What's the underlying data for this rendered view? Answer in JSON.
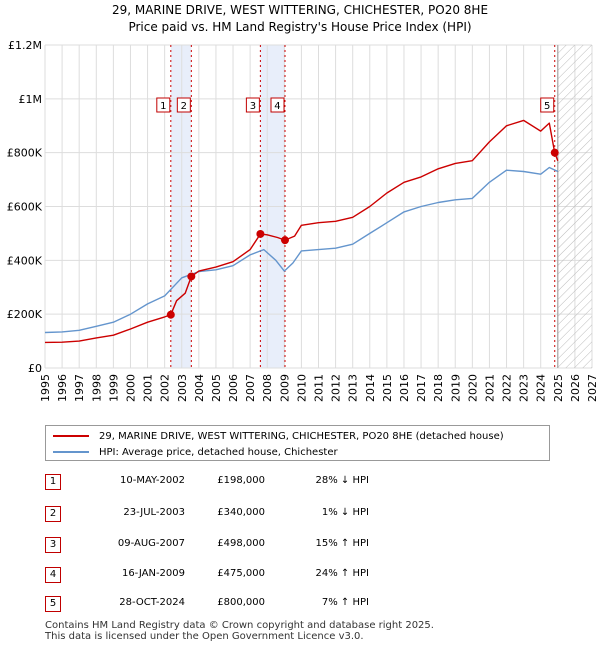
{
  "title_line1": "29, MARINE DRIVE, WEST WITTERING, CHICHESTER, PO20 8HE",
  "title_line2": "Price paid vs. HM Land Registry's House Price Index (HPI)",
  "legend": {
    "property_label": "29, MARINE DRIVE, WEST WITTERING, CHICHESTER, PO20 8HE (detached house)",
    "hpi_label": "HPI: Average price, detached house, Chichester"
  },
  "sales": [
    {
      "num": "1",
      "date": "10-MAY-2002",
      "price": "£198,000",
      "hpi_change": "28% ↓ HPI"
    },
    {
      "num": "2",
      "date": "23-JUL-2003",
      "price": "£340,000",
      "hpi_change": "1% ↓ HPI"
    },
    {
      "num": "3",
      "date": "09-AUG-2007",
      "price": "£498,000",
      "hpi_change": "15% ↑ HPI"
    },
    {
      "num": "4",
      "date": "16-JAN-2009",
      "price": "£475,000",
      "hpi_change": "24% ↑ HPI"
    },
    {
      "num": "5",
      "date": "28-OCT-2024",
      "price": "£800,000",
      "hpi_change": "7% ↑ HPI"
    }
  ],
  "footer_line1": "Contains HM Land Registry data © Crown copyright and database right 2025.",
  "footer_line2": "This data is licensed under the Open Government Licence v3.0.",
  "colors": {
    "property": "#cc0000",
    "hpi": "#6495cd",
    "grid": "#dddddd",
    "band": "#e8eefa"
  },
  "chart_data": {
    "type": "line",
    "title": "29, MARINE DRIVE, WEST WITTERING, CHICHESTER, PO20 8HE",
    "subtitle": "Price paid vs. HM Land Registry's House Price Index (HPI)",
    "xlim": [
      1995,
      2027
    ],
    "ylim": [
      0,
      1200000
    ],
    "x_ticks": [
      "1995",
      "1996",
      "1997",
      "1998",
      "1999",
      "2000",
      "2001",
      "2002",
      "2003",
      "2004",
      "2005",
      "2006",
      "2007",
      "2008",
      "2009",
      "2010",
      "2011",
      "2012",
      "2013",
      "2014",
      "2015",
      "2016",
      "2017",
      "2018",
      "2019",
      "2020",
      "2021",
      "2022",
      "2023",
      "2024",
      "2025",
      "2026",
      "2027"
    ],
    "y_ticks": [
      {
        "value": 0,
        "label": "£0"
      },
      {
        "value": 200000,
        "label": "£200K"
      },
      {
        "value": 400000,
        "label": "£400K"
      },
      {
        "value": 600000,
        "label": "£600K"
      },
      {
        "value": 800000,
        "label": "£800K"
      },
      {
        "value": 1000000,
        "label": "£1M"
      },
      {
        "value": 1200000,
        "label": "£1.2M"
      }
    ],
    "grid": true,
    "forecast_from": 2025.0,
    "sale_bands": [
      [
        2002.36,
        2003.56
      ],
      [
        2007.6,
        2009.04
      ]
    ],
    "sale_markers": [
      {
        "label": "1",
        "x": 2002.36,
        "y": 198000
      },
      {
        "label": "2",
        "x": 2003.56,
        "y": 340000
      },
      {
        "label": "3",
        "x": 2007.6,
        "y": 498000
      },
      {
        "label": "4",
        "x": 2009.04,
        "y": 475000
      },
      {
        "label": "5",
        "x": 2024.82,
        "y": 800000
      }
    ],
    "series": [
      {
        "name": "29, MARINE DRIVE, WEST WITTERING, CHICHESTER, PO20 8HE (detached house)",
        "color": "#cc0000",
        "points": [
          [
            1995,
            95000
          ],
          [
            1996,
            96000
          ],
          [
            1997,
            100000
          ],
          [
            1998,
            112000
          ],
          [
            1999,
            122000
          ],
          [
            2000,
            145000
          ],
          [
            2001,
            170000
          ],
          [
            2002,
            190000
          ],
          [
            2002.36,
            198000
          ],
          [
            2002.7,
            250000
          ],
          [
            2003.2,
            278000
          ],
          [
            2003.56,
            340000
          ],
          [
            2004,
            360000
          ],
          [
            2005,
            375000
          ],
          [
            2006,
            395000
          ],
          [
            2007,
            440000
          ],
          [
            2007.6,
            498000
          ],
          [
            2008,
            495000
          ],
          [
            2008.6,
            485000
          ],
          [
            2009.04,
            475000
          ],
          [
            2009.6,
            490000
          ],
          [
            2010,
            530000
          ],
          [
            2011,
            540000
          ],
          [
            2012,
            545000
          ],
          [
            2013,
            560000
          ],
          [
            2014,
            600000
          ],
          [
            2015,
            650000
          ],
          [
            2016,
            690000
          ],
          [
            2017,
            710000
          ],
          [
            2018,
            740000
          ],
          [
            2019,
            760000
          ],
          [
            2020,
            770000
          ],
          [
            2021,
            840000
          ],
          [
            2022,
            900000
          ],
          [
            2023,
            920000
          ],
          [
            2024,
            880000
          ],
          [
            2024.5,
            910000
          ],
          [
            2024.82,
            800000
          ],
          [
            2025.0,
            770000
          ]
        ]
      },
      {
        "name": "HPI: Average price, detached house, Chichester",
        "color": "#6495cd",
        "points": [
          [
            1995,
            132000
          ],
          [
            1996,
            134000
          ],
          [
            1997,
            140000
          ],
          [
            1998,
            155000
          ],
          [
            1999,
            170000
          ],
          [
            2000,
            200000
          ],
          [
            2001,
            238000
          ],
          [
            2002,
            268000
          ],
          [
            2003,
            335000
          ],
          [
            2004,
            358000
          ],
          [
            2005,
            365000
          ],
          [
            2006,
            380000
          ],
          [
            2007,
            420000
          ],
          [
            2007.8,
            440000
          ],
          [
            2008.5,
            400000
          ],
          [
            2009,
            360000
          ],
          [
            2009.5,
            390000
          ],
          [
            2010,
            435000
          ],
          [
            2011,
            440000
          ],
          [
            2012,
            445000
          ],
          [
            2013,
            460000
          ],
          [
            2014,
            500000
          ],
          [
            2015,
            540000
          ],
          [
            2016,
            580000
          ],
          [
            2017,
            600000
          ],
          [
            2018,
            615000
          ],
          [
            2019,
            625000
          ],
          [
            2020,
            630000
          ],
          [
            2021,
            690000
          ],
          [
            2022,
            735000
          ],
          [
            2023,
            730000
          ],
          [
            2024,
            720000
          ],
          [
            2024.5,
            745000
          ],
          [
            2025.0,
            730000
          ]
        ]
      }
    ]
  }
}
